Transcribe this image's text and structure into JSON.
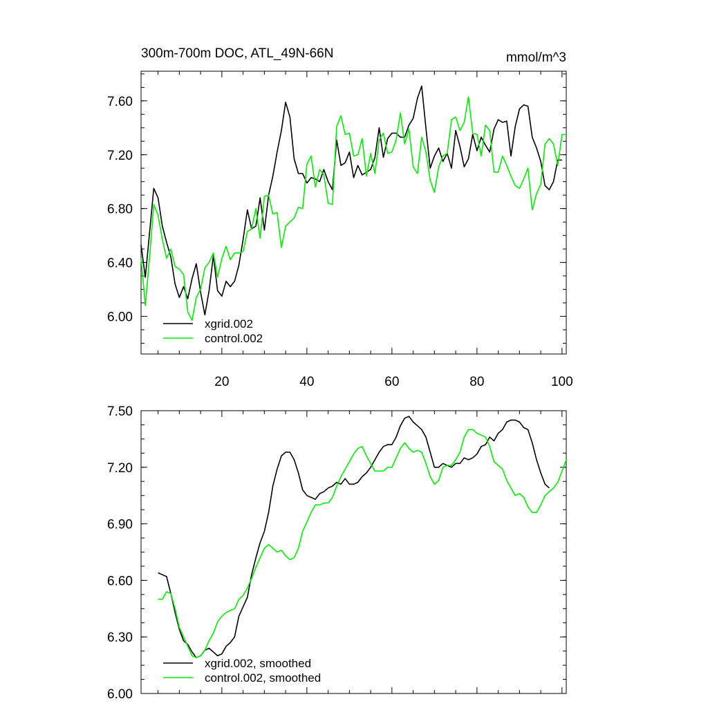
{
  "chart_data": [
    {
      "type": "line",
      "title": "300m-700m DOC, ATL_49N-66N",
      "units": "mmol/m^3",
      "xlim": [
        1,
        101
      ],
      "ylim": [
        5.72,
        7.82
      ],
      "x_ticks": [
        20,
        40,
        60,
        80,
        100
      ],
      "x_tick_labels": [
        "20",
        "40",
        "60",
        "80",
        "100"
      ],
      "y_ticks": [
        6.0,
        6.4,
        6.8,
        7.2,
        7.6
      ],
      "y_tick_labels": [
        "6.00",
        "6.40",
        "6.80",
        "7.20",
        "7.60"
      ],
      "legend_position": "bottom-left",
      "series": [
        {
          "name": "xgrid.002",
          "color": "#000000",
          "x_start": 1,
          "values": [
            6.53,
            6.29,
            6.62,
            6.95,
            6.88,
            6.67,
            6.55,
            6.44,
            6.24,
            6.14,
            6.22,
            6.13,
            6.28,
            6.39,
            6.18,
            6.01,
            6.19,
            6.45,
            6.19,
            6.15,
            6.26,
            6.22,
            6.26,
            6.38,
            6.57,
            6.79,
            6.65,
            6.67,
            6.88,
            6.64,
            6.9,
            7.04,
            7.22,
            7.38,
            7.59,
            7.48,
            7.17,
            7.06,
            7.06,
            6.99,
            7.03,
            7.02,
            7.0,
            7.09,
            7.0,
            6.94,
            7.31,
            7.12,
            7.14,
            7.22,
            7.03,
            7.12,
            7.05,
            7.07,
            7.09,
            7.18,
            7.4,
            7.18,
            7.32,
            7.36,
            7.36,
            7.33,
            7.33,
            7.42,
            7.47,
            7.62,
            7.71,
            7.4,
            7.1,
            7.19,
            7.25,
            7.15,
            7.21,
            7.1,
            7.38,
            7.26,
            7.11,
            7.17,
            7.35,
            7.23,
            7.33,
            7.27,
            7.22,
            7.39,
            7.46,
            7.44,
            7.45,
            7.19,
            7.41,
            7.54,
            7.57,
            7.56,
            7.33,
            7.25,
            7.15,
            6.97,
            6.94,
            7.0,
            7.16,
            7.16
          ]
        },
        {
          "name": "control.002",
          "color": "#00ee00",
          "x_start": 1,
          "values": [
            6.43,
            6.08,
            6.44,
            6.83,
            6.75,
            6.57,
            6.43,
            6.5,
            6.37,
            6.35,
            6.31,
            6.03,
            5.97,
            6.14,
            6.2,
            6.36,
            6.4,
            6.47,
            6.29,
            6.43,
            6.52,
            6.42,
            6.47,
            6.47,
            6.48,
            6.63,
            6.65,
            6.8,
            6.58,
            6.89,
            6.9,
            6.76,
            6.77,
            6.51,
            6.67,
            6.7,
            6.73,
            6.81,
            6.8,
            7.13,
            7.19,
            6.96,
            7.09,
            7.05,
            6.84,
            6.83,
            7.41,
            7.49,
            7.35,
            7.36,
            7.19,
            7.2,
            7.32,
            7.04,
            7.21,
            7.06,
            7.31,
            7.36,
            7.21,
            7.22,
            7.31,
            7.51,
            7.28,
            7.39,
            7.11,
            7.06,
            7.33,
            7.22,
            7.01,
            6.92,
            7.11,
            7.19,
            7.21,
            7.46,
            7.48,
            7.38,
            7.44,
            7.63,
            7.36,
            7.35,
            7.19,
            7.42,
            7.38,
            7.07,
            7.07,
            7.19,
            7.12,
            7.04,
            6.97,
            6.95,
            7.02,
            7.1,
            6.79,
            6.91,
            6.98,
            7.28,
            7.32,
            7.28,
            7.12,
            7.35,
            7.35
          ]
        }
      ]
    },
    {
      "type": "line",
      "title": "",
      "xlim": [
        1,
        101
      ],
      "ylim": [
        6.0,
        7.5
      ],
      "x_ticks": [
        20,
        40,
        60,
        80,
        100
      ],
      "y_ticks": [
        6.0,
        6.3,
        6.6,
        6.9,
        7.2,
        7.5
      ],
      "y_tick_labels": [
        "6.00",
        "6.30",
        "6.60",
        "6.90",
        "7.20",
        "7.50"
      ],
      "legend_position": "bottom-left",
      "series": [
        {
          "name": "xgrid.002, smoothed",
          "color": "#000000",
          "x_start": 5,
          "values": [
            6.64,
            6.63,
            6.62,
            6.53,
            6.43,
            6.34,
            6.28,
            6.26,
            6.22,
            6.19,
            6.2,
            6.23,
            6.24,
            6.22,
            6.2,
            6.21,
            6.25,
            6.27,
            6.3,
            6.41,
            6.46,
            6.51,
            6.63,
            6.72,
            6.8,
            6.86,
            6.96,
            7.1,
            7.19,
            7.26,
            7.28,
            7.28,
            7.24,
            7.17,
            7.08,
            7.05,
            7.04,
            7.03,
            7.06,
            7.07,
            7.09,
            7.1,
            7.12,
            7.11,
            7.14,
            7.11,
            7.11,
            7.12,
            7.15,
            7.17,
            7.2,
            7.24,
            7.28,
            7.31,
            7.32,
            7.32,
            7.36,
            7.42,
            7.46,
            7.47,
            7.44,
            7.42,
            7.4,
            7.36,
            7.28,
            7.2,
            7.2,
            7.22,
            7.21,
            7.2,
            7.22,
            7.22,
            7.25,
            7.24,
            7.25,
            7.27,
            7.31,
            7.32,
            7.36,
            7.34,
            7.38,
            7.4,
            7.44,
            7.45,
            7.45,
            7.44,
            7.41,
            7.4,
            7.33,
            7.24,
            7.17,
            7.11,
            7.09
          ]
        },
        {
          "name": "control.002, smoothed",
          "color": "#00ee00",
          "x_start": 5,
          "values": [
            6.5,
            6.5,
            6.54,
            6.53,
            6.45,
            6.35,
            6.3,
            6.25,
            6.2,
            6.19,
            6.2,
            6.23,
            6.28,
            6.32,
            6.38,
            6.41,
            6.43,
            6.44,
            6.45,
            6.5,
            6.52,
            6.56,
            6.61,
            6.67,
            6.72,
            6.77,
            6.79,
            6.77,
            6.75,
            6.76,
            6.73,
            6.71,
            6.72,
            6.77,
            6.86,
            6.91,
            6.96,
            7.0,
            7.0,
            7.01,
            7.01,
            7.04,
            7.1,
            7.15,
            7.19,
            7.23,
            7.27,
            7.3,
            7.31,
            7.26,
            7.22,
            7.18,
            7.18,
            7.18,
            7.2,
            7.2,
            7.25,
            7.3,
            7.33,
            7.3,
            7.28,
            7.29,
            7.28,
            7.22,
            7.15,
            7.11,
            7.13,
            7.2,
            7.21,
            7.21,
            7.24,
            7.28,
            7.36,
            7.4,
            7.4,
            7.38,
            7.37,
            7.36,
            7.31,
            7.23,
            7.21,
            7.19,
            7.13,
            7.09,
            7.05,
            7.06,
            7.04,
            6.99,
            6.96,
            6.96,
            7.0,
            7.05,
            7.07,
            7.09,
            7.12,
            7.18,
            7.24
          ]
        }
      ]
    }
  ]
}
